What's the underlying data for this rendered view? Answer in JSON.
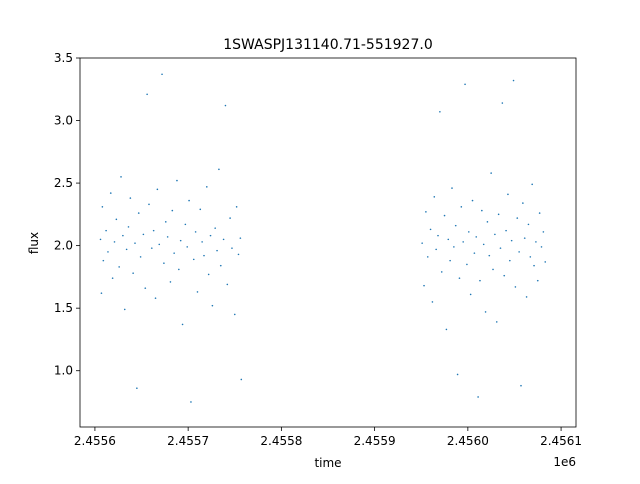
{
  "chart_data": {
    "type": "scatter",
    "title": "1SWASPJ131140.71-551927.0",
    "xlabel": "time",
    "ylabel": "flux",
    "x_offset_label": "1e6",
    "xlim": [
      2455584,
      2456116
    ],
    "ylim": [
      0.55,
      3.5
    ],
    "xticks": [
      {
        "value": 2455600,
        "label": "2.4556"
      },
      {
        "value": 2455700,
        "label": "2.4557"
      },
      {
        "value": 2455800,
        "label": "2.4558"
      },
      {
        "value": 2455900,
        "label": "2.4559"
      },
      {
        "value": 2456000,
        "label": "2.4560"
      },
      {
        "value": 2456100,
        "label": "2.4561"
      }
    ],
    "yticks": [
      {
        "value": 1,
        "label": "1.0"
      },
      1.5,
      {
        "value": 2,
        "label": "2.0"
      },
      2.5,
      {
        "value": 3,
        "label": "3.0"
      },
      3.5
    ],
    "series": [
      {
        "color": "#1f77b4",
        "x": [
          2455606,
          2455607,
          2455608,
          2455609,
          2455612,
          2455614,
          2455617,
          2455619,
          2455621,
          2455623,
          2455626,
          2455628,
          2455630,
          2455632,
          2455634,
          2455636,
          2455638,
          2455641,
          2455643,
          2455645,
          2455647,
          2455649,
          2455652,
          2455654,
          2455656,
          2455658,
          2455661,
          2455663,
          2455665,
          2455667,
          2455669,
          2455672,
          2455674,
          2455676,
          2455678,
          2455681,
          2455683,
          2455685,
          2455688,
          2455690,
          2455692,
          2455694,
          2455697,
          2455699,
          2455701,
          2455703,
          2455706,
          2455708,
          2455710,
          2455713,
          2455715,
          2455717,
          2455720,
          2455722,
          2455724,
          2455726,
          2455729,
          2455731,
          2455733,
          2455735,
          2455738,
          2455740,
          2455742,
          2455745,
          2455747,
          2455750,
          2455752,
          2455754,
          2455756,
          2455757,
          2455951,
          2455953,
          2455955,
          2455957,
          2455960,
          2455962,
          2455964,
          2455966,
          2455968,
          2455970,
          2455972,
          2455975,
          2455977,
          2455979,
          2455981,
          2455983,
          2455985,
          2455987,
          2455989,
          2455991,
          2455993,
          2455995,
          2455997,
          2455999,
          2456001,
          2456003,
          2456005,
          2456007,
          2456009,
          2456011,
          2456013,
          2456015,
          2456017,
          2456019,
          2456021,
          2456023,
          2456025,
          2456027,
          2456029,
          2456031,
          2456033,
          2456035,
          2456037,
          2456039,
          2456041,
          2456043,
          2456045,
          2456047,
          2456049,
          2456051,
          2456053,
          2456055,
          2456057,
          2456059,
          2456061,
          2456063,
          2456065,
          2456067,
          2456069,
          2456071,
          2456073,
          2456075,
          2456077,
          2456079,
          2456081,
          2456083
        ],
        "values": [
          2.05,
          1.62,
          2.31,
          1.88,
          2.12,
          1.95,
          2.42,
          1.74,
          2.03,
          2.21,
          1.83,
          2.55,
          2.08,
          1.49,
          1.97,
          2.15,
          2.38,
          1.78,
          2.02,
          0.86,
          2.26,
          1.91,
          2.09,
          1.66,
          3.21,
          2.33,
          1.98,
          2.12,
          1.58,
          2.45,
          2.01,
          3.37,
          1.86,
          2.19,
          2.07,
          1.71,
          2.28,
          1.94,
          2.52,
          1.81,
          2.04,
          1.37,
          2.17,
          1.99,
          2.36,
          0.75,
          1.89,
          2.11,
          1.63,
          2.29,
          2.03,
          1.92,
          2.47,
          1.77,
          2.08,
          1.52,
          2.14,
          1.96,
          2.61,
          1.84,
          2.05,
          3.12,
          1.69,
          2.22,
          1.98,
          1.45,
          2.31,
          1.93,
          2.06,
          0.93,
          2.02,
          1.68,
          2.27,
          1.91,
          2.13,
          1.55,
          2.39,
          1.97,
          2.08,
          3.07,
          1.79,
          2.24,
          1.33,
          2.05,
          1.88,
          2.46,
          1.99,
          2.16,
          0.97,
          1.74,
          2.31,
          2.03,
          3.29,
          1.85,
          2.11,
          1.61,
          2.36,
          1.94,
          2.07,
          0.79,
          1.72,
          2.28,
          2.01,
          1.47,
          2.19,
          1.92,
          2.58,
          1.81,
          2.09,
          1.39,
          2.25,
          1.98,
          3.14,
          1.76,
          2.12,
          2.41,
          1.88,
          2.04,
          3.32,
          1.67,
          2.22,
          1.95,
          0.88,
          2.34,
          2.06,
          1.59,
          2.17,
          1.91,
          2.49,
          1.84,
          2.03,
          1.72,
          2.26,
          1.99,
          2.11,
          1.87
        ]
      }
    ]
  }
}
